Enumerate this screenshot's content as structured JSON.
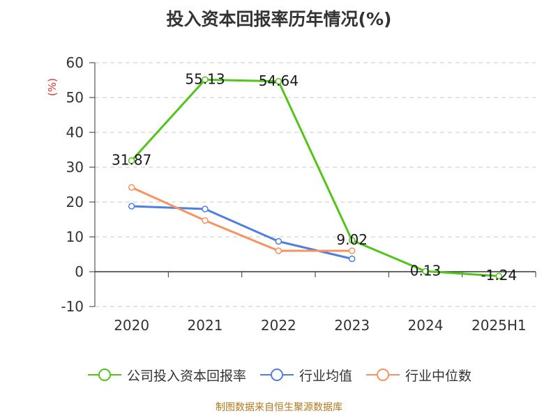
{
  "title": "投入资本回报率历年情况(%)",
  "source": "制图数据来自恒生聚源数据库",
  "colors": {
    "company": "#52c41a",
    "industry_avg": "#4f7fdc",
    "industry_median": "#f79262",
    "unit": "#e03030",
    "axis": "#333333",
    "grid": "#c8c8c8"
  },
  "chart_data": {
    "type": "line",
    "title": "投入资本回报率历年情况(%)",
    "xlabel": "",
    "ylabel": "(%)",
    "categories": [
      "2020",
      "2021",
      "2022",
      "2023",
      "2024",
      "2025H1"
    ],
    "ylim": [
      -10,
      60
    ],
    "yticks": [
      -10,
      0,
      10,
      20,
      30,
      40,
      50,
      60
    ],
    "grid": true,
    "legend_position": "bottom",
    "series": [
      {
        "name": "公司投入资本回报率",
        "color": "#52c41a",
        "values": [
          31.87,
          55.13,
          54.64,
          9.02,
          0.13,
          -1.24
        ],
        "labels": [
          "31.87",
          "55.13",
          "54.64",
          "9.02",
          "0.13",
          "-1.24"
        ]
      },
      {
        "name": "行业均值",
        "color": "#4f7fdc",
        "values": [
          18.8,
          18.0,
          8.7,
          3.7,
          null,
          null
        ]
      },
      {
        "name": "行业中位数",
        "color": "#f79262",
        "values": [
          24.2,
          14.7,
          6.0,
          6.0,
          null,
          null
        ]
      }
    ]
  }
}
